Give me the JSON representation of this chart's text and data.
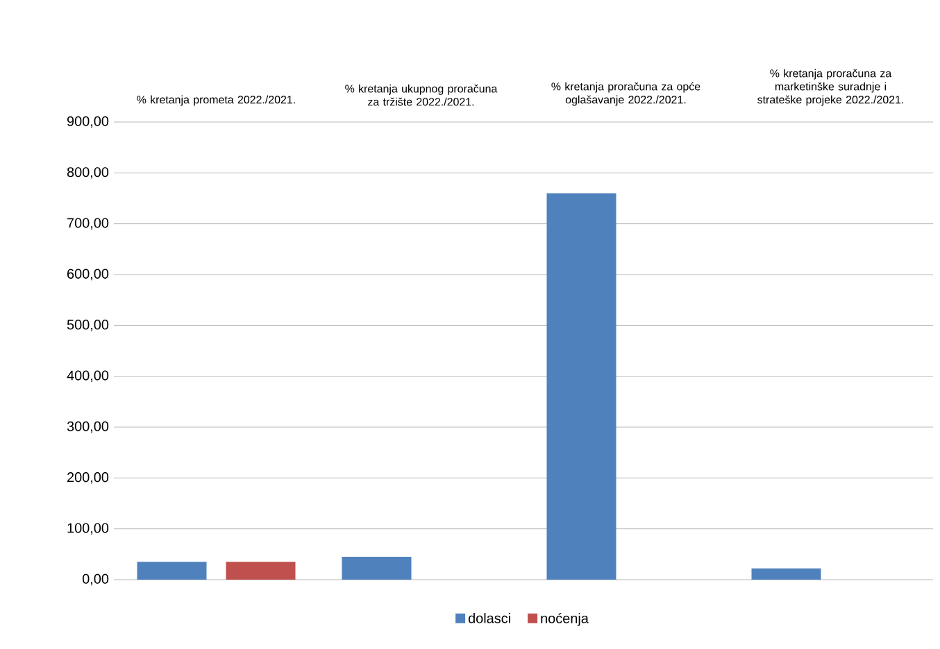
{
  "chart_data": {
    "type": "bar",
    "categories": [
      "% kretanja prometa 2022./2021.",
      "% kretanja ukupnog proračuna za tržište 2022./2021.",
      "% kretanja proračuna za opće oglašavanje 2022./2021.",
      "% kretanja proračuna za marketinške suradnje i strateške projeke 2022./2021."
    ],
    "series": [
      {
        "name": "dolasci",
        "color": "#4f81bd",
        "values": [
          35,
          45,
          760,
          22
        ]
      },
      {
        "name": "noćenja",
        "color": "#c0504d",
        "values": [
          35,
          null,
          null,
          null
        ]
      }
    ],
    "ylim": [
      0,
      900
    ],
    "yticks": [
      {
        "value": 0,
        "label": "0,00"
      },
      {
        "value": 100,
        "label": "100,00"
      },
      {
        "value": 200,
        "label": "200,00"
      },
      {
        "value": 300,
        "label": "300,00"
      },
      {
        "value": 400,
        "label": "400,00"
      },
      {
        "value": 500,
        "label": "500,00"
      },
      {
        "value": 600,
        "label": "600,00"
      },
      {
        "value": 700,
        "label": "700,00"
      },
      {
        "value": 800,
        "label": "800,00"
      },
      {
        "value": 900,
        "label": "900,00"
      }
    ],
    "grid": "y",
    "legend": "bottom"
  }
}
